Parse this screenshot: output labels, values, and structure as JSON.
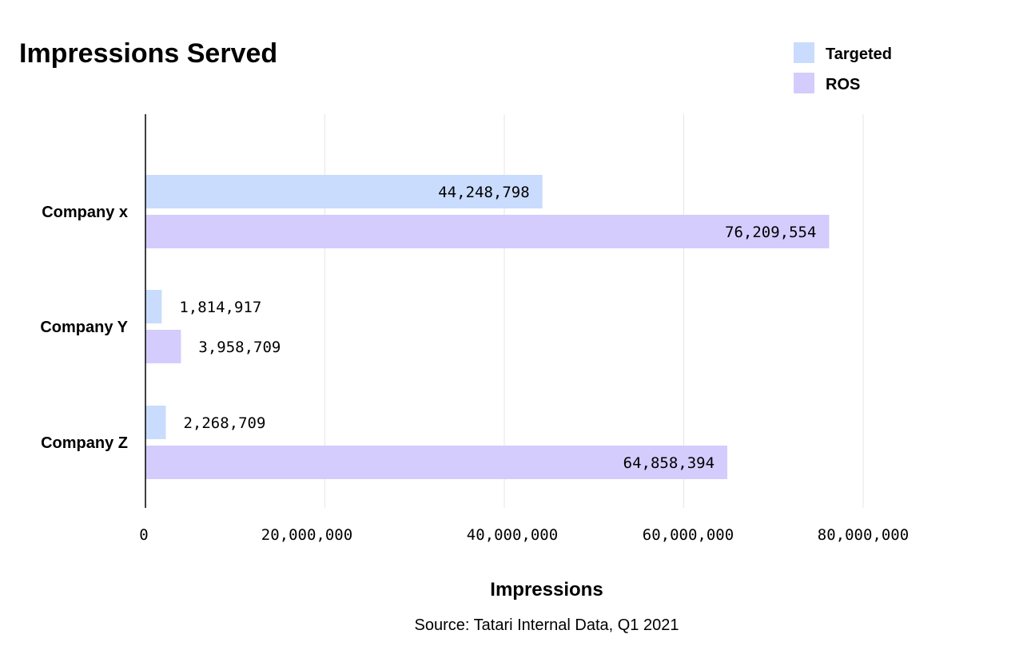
{
  "chart_data": {
    "type": "bar",
    "orientation": "horizontal",
    "title": "Impressions Served",
    "xlabel": "Impressions",
    "ylabel": "",
    "source": "Source: Tatari Internal Data, Q1 2021",
    "categories": [
      "Company x",
      "Company Y",
      "Company Z"
    ],
    "series": [
      {
        "name": "Targeted",
        "color": "#c9dcfd",
        "values": [
          44248798,
          1814917,
          2268709
        ],
        "labels": [
          "44,248,798",
          "1,814,917",
          "2,268,709"
        ]
      },
      {
        "name": "ROS",
        "color": "#d4ccfd",
        "values": [
          76209554,
          3958709,
          64858394
        ],
        "labels": [
          "76,209,554",
          "3,958,709",
          "64,858,394"
        ]
      }
    ],
    "xlim": [
      0,
      80000000
    ],
    "xticks": [
      0,
      20000000,
      40000000,
      60000000,
      80000000
    ],
    "xtick_labels": [
      "0",
      "20,000,000",
      "40,000,000",
      "60,000,000",
      "80,000,000"
    ],
    "grid": true,
    "legend_position": "top-right"
  }
}
